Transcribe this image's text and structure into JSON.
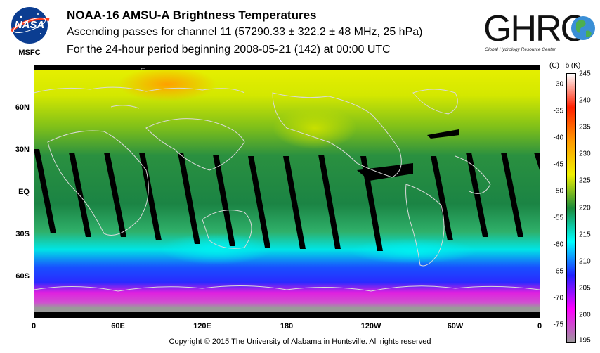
{
  "header": {
    "title": "NOAA-16 AMSU-A Brightness Temperatures",
    "subtitle1": "Ascending passes for channel 11 (57290.33 ± 322.2 ± 48 MHz, 25 hPa)",
    "subtitle2": "For the 24-hour period beginning 2008-05-21 (142) at 00:00 UTC"
  },
  "logos": {
    "nasa_text": "NASA",
    "msfc_text": "MSFC",
    "ghrc_text": "GHRC",
    "ghrc_sub": "Global Hydrology Resource Center"
  },
  "map": {
    "lat_labels": [
      "60N",
      "30N",
      "EQ",
      "30S",
      "60S"
    ],
    "lon_labels": [
      "0",
      "60E",
      "120E",
      "180",
      "120W",
      "60W",
      "0"
    ],
    "direction_arrow": "←"
  },
  "colorbar": {
    "header": "(C)  Tb  (K)",
    "celsius_ticks": [
      "-30",
      "-35",
      "-40",
      "-45",
      "-50",
      "-55",
      "-60",
      "-65",
      "-70",
      "-75"
    ],
    "kelvin_ticks": [
      "245",
      "240",
      "235",
      "230",
      "225",
      "220",
      "215",
      "210",
      "205",
      "200",
      "195"
    ],
    "colors": {
      "white": "#ffffff",
      "red": "#ff2000",
      "orange": "#ff9a00",
      "yellow": "#f0f000",
      "green": "#1a8a3a",
      "cyan": "#00ffff",
      "blue": "#2020ff",
      "magenta": "#ff00ff",
      "gray": "#9a9a9a"
    }
  },
  "footer": {
    "copyright": "Copyright © 2015 The University of Alabama in Huntsville.  All rights reserved"
  }
}
